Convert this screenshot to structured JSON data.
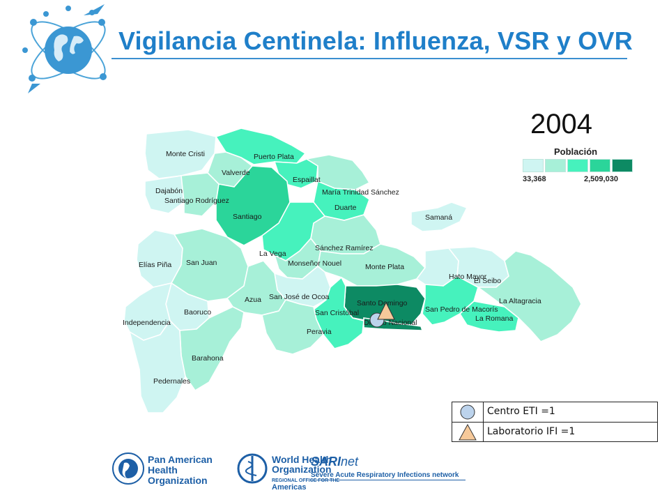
{
  "header": {
    "title": "Vigilancia Centinela: Influenza, VSR y OVR",
    "year": "2004"
  },
  "colors": {
    "title": "#1f7fc9",
    "pop_class_1": "#cff5f2",
    "pop_class_2": "#a7f0d8",
    "pop_class_3": "#46f2bd",
    "pop_class_4": "#2bd59a",
    "pop_class_5": "#0d8a63",
    "eti_marker": "#bcd3ec",
    "ifi_marker": "#f6c99a"
  },
  "legend": {
    "title": "Población",
    "min": "33,368",
    "max": "2,509,030",
    "classes": 5
  },
  "provinces": [
    {
      "name": "Monte Cristi",
      "pop_class": 1
    },
    {
      "name": "Puerto Plata",
      "pop_class": 3
    },
    {
      "name": "Valverde",
      "pop_class": 2
    },
    {
      "name": "Espaillat",
      "pop_class": 3
    },
    {
      "name": "Dajabón",
      "pop_class": 1
    },
    {
      "name": "Santiago Rodríguez",
      "pop_class": 2
    },
    {
      "name": "María Trinidad Sánchez",
      "pop_class": 2
    },
    {
      "name": "Duarte",
      "pop_class": 3
    },
    {
      "name": "Santiago",
      "pop_class": 4
    },
    {
      "name": "Samaná",
      "pop_class": 1
    },
    {
      "name": "Sánchez Ramírez",
      "pop_class": 2
    },
    {
      "name": "La Vega",
      "pop_class": 3
    },
    {
      "name": "Monseñor Nouel",
      "pop_class": 2
    },
    {
      "name": "Elías Piña",
      "pop_class": 1
    },
    {
      "name": "San Juan",
      "pop_class": 2
    },
    {
      "name": "Monte Plata",
      "pop_class": 2
    },
    {
      "name": "Hato Mayor",
      "pop_class": 1
    },
    {
      "name": "El Seibo",
      "pop_class": 1
    },
    {
      "name": "San José de Ocoa",
      "pop_class": 1
    },
    {
      "name": "Azua",
      "pop_class": 2
    },
    {
      "name": "Santo Domingo",
      "pop_class": 5
    },
    {
      "name": "Distrito Nacional",
      "pop_class": 5
    },
    {
      "name": "San Cristóbal",
      "pop_class": 3
    },
    {
      "name": "San Pedro de Macorís",
      "pop_class": 3
    },
    {
      "name": "La Altagracia",
      "pop_class": 2
    },
    {
      "name": "La Romana",
      "pop_class": 3
    },
    {
      "name": "Baoruco",
      "pop_class": 1
    },
    {
      "name": "Independencia",
      "pop_class": 1
    },
    {
      "name": "Peravia",
      "pop_class": 2
    },
    {
      "name": "Barahona",
      "pop_class": 2
    },
    {
      "name": "Pedernales",
      "pop_class": 1
    }
  ],
  "site_legend": {
    "eti": {
      "label": "Centro ETI =1",
      "icon": "circle"
    },
    "ifi": {
      "label": "Laboratorio IFI =1",
      "icon": "triangle"
    }
  },
  "footer": {
    "paho": {
      "line1": "Pan American",
      "line2": "Health",
      "line3": "Organization"
    },
    "who": {
      "line1": "World Health",
      "line2": "Organization",
      "regional": "REGIONAL OFFICE FOR THE",
      "americas": "Americas"
    },
    "sari": {
      "name_bold": "SARI",
      "name_rest": "net",
      "subtitle": "Severe Acute Respiratory Infections network"
    }
  }
}
